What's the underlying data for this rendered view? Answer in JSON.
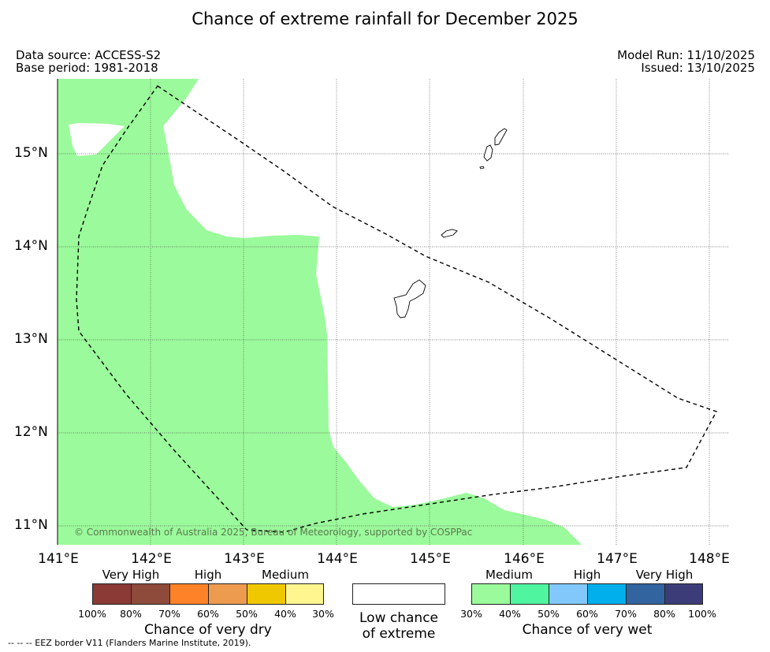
{
  "title": "Chance of extreme rainfall for December 2025",
  "header": {
    "data_source": "Data source: ACCESS-S2",
    "base_period": "Base period: 1981-2018",
    "model_run": "Model Run: 11/10/2025",
    "issued": "Issued: 13/10/2025"
  },
  "map": {
    "lat_labels": [
      "15°N",
      "14°N",
      "13°N",
      "12°N",
      "11°N"
    ],
    "lon_labels": [
      "141°E",
      "142°E",
      "143°E",
      "144°E",
      "145°E",
      "146°E",
      "147°E",
      "148°E"
    ],
    "copyright": "© Commonwealth of Australia 2025, Bureau of Meteorology, supported by COSPPac",
    "colors": {
      "medium_wet_fill": "#9bfa9b",
      "grid": "#555555",
      "eez_border": "#000000"
    }
  },
  "legend": {
    "dry": {
      "categories": [
        "Very High",
        "High",
        "Medium"
      ],
      "colors": [
        "#8b3a36",
        "#8e4a3a",
        "#fe8228",
        "#ed9b4f",
        "#f0c800",
        "#fff690"
      ],
      "percentages": [
        "100%",
        "80%",
        "70%",
        "60%",
        "50%",
        "40%",
        "30%"
      ],
      "caption": "Chance of very dry"
    },
    "low": {
      "color": "#ffffff",
      "caption_line1": "Low chance",
      "caption_line2": "of extreme"
    },
    "wet": {
      "categories": [
        "Medium",
        "High",
        "Very High"
      ],
      "colors": [
        "#9bfa9b",
        "#50f5a0",
        "#82c8fa",
        "#00afec",
        "#3264a0",
        "#3c3c78"
      ],
      "percentages": [
        "30%",
        "40%",
        "50%",
        "60%",
        "70%",
        "80%",
        "100%"
      ],
      "caption": "Chance of very wet"
    }
  },
  "footnote": "--  --  -- EEZ border V11 (Flanders Marine Institute, 2019)."
}
